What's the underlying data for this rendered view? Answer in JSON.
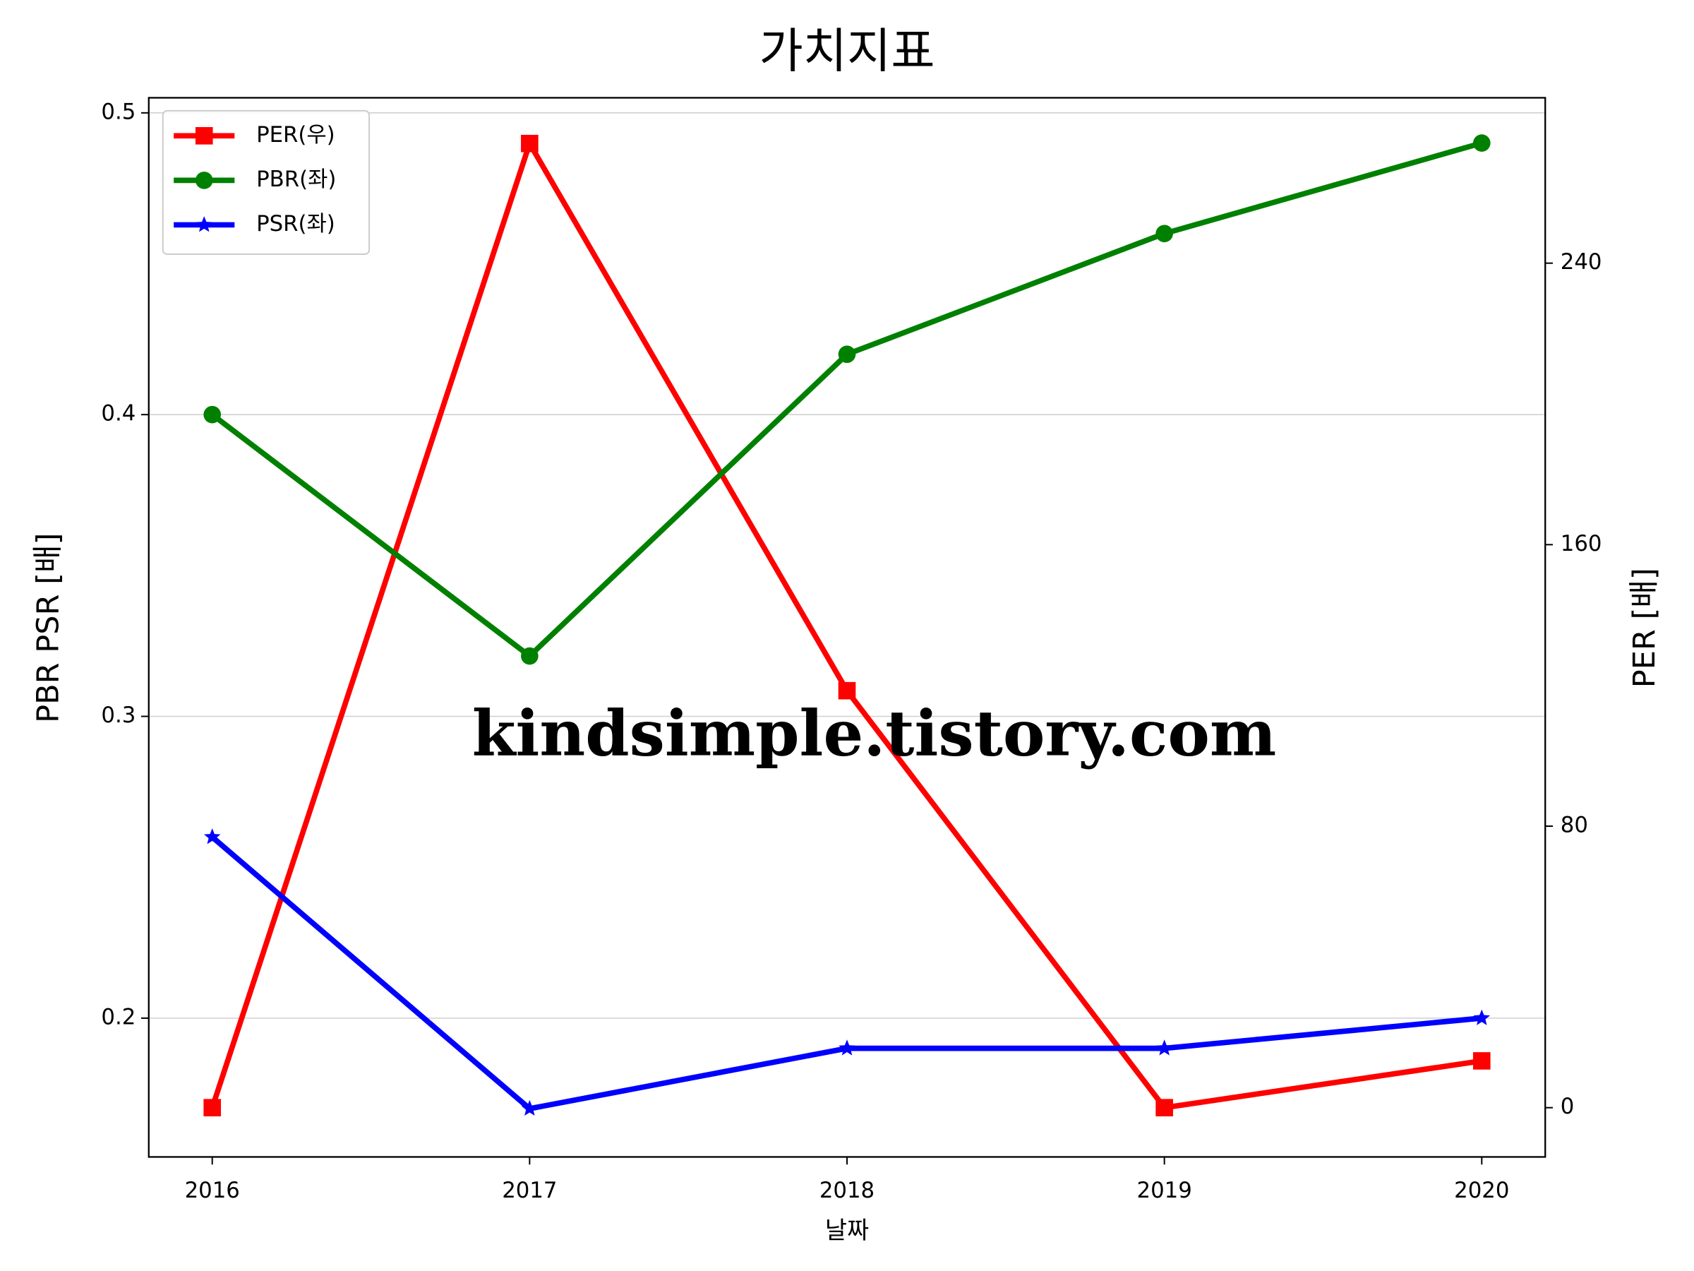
{
  "chart_data": {
    "type": "line",
    "title": "가치지표",
    "x_label": "날짜",
    "y_label": "PBR PSR [배]",
    "y2_label": "PER [배]",
    "x": [
      2016,
      2017,
      2018,
      2019,
      2020
    ],
    "xlim": [
      2015.8,
      2020.2
    ],
    "xticks": [
      2016,
      2017,
      2018,
      2019,
      2020
    ],
    "ylim": [
      0.154,
      0.505
    ],
    "yticks": [
      0.2,
      0.3,
      0.4,
      0.5
    ],
    "y2lim": [
      -14,
      287
    ],
    "y2ticks": [
      0,
      80,
      160,
      240
    ],
    "y_label_color": "#008000",
    "y2_label_color": "#ff0000",
    "grid": true,
    "legend": "upper left",
    "series": [
      {
        "name": "PER(우)",
        "color": "#ff0000",
        "marker": "square",
        "axis": "y2",
        "values": [
          0,
          274,
          118.5,
          0,
          13.3
        ]
      },
      {
        "name": "PBR(좌)",
        "color": "#008000",
        "marker": "circle",
        "values": [
          0.4,
          0.32,
          0.42,
          0.46,
          0.49
        ]
      },
      {
        "name": "PSR(좌)",
        "color": "#0000ff",
        "marker": "star",
        "values": [
          0.26,
          0.17,
          0.19,
          0.19,
          0.2
        ]
      }
    ],
    "watermark": "kindsimple.tistory.com"
  }
}
